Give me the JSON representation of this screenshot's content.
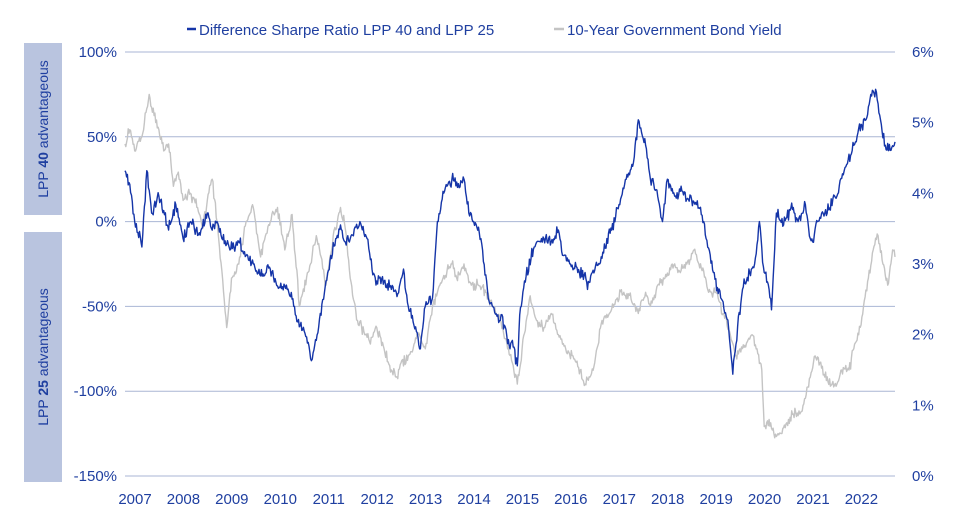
{
  "chart_data": {
    "type": "line",
    "title": "",
    "x_tick_labels": [
      "2007",
      "2008",
      "2009",
      "2010",
      "2011",
      "2012",
      "2013",
      "2014",
      "2015",
      "2016",
      "2017",
      "2018",
      "2019",
      "2020",
      "2021",
      "2022"
    ],
    "y_left": {
      "ylim": [
        -150,
        100
      ],
      "ticks": [
        -150,
        -100,
        -50,
        0,
        50,
        100
      ],
      "tick_labels": [
        "-150%",
        "-100%",
        "-50%",
        "0%",
        "50%",
        "100%"
      ]
    },
    "y_right": {
      "ylim": [
        0,
        6
      ],
      "ticks": [
        0,
        1,
        2,
        3,
        4,
        5,
        6
      ],
      "tick_labels": [
        "0%",
        "1%",
        "2%",
        "3%",
        "4%",
        "5%",
        "6%"
      ]
    },
    "band_labels": {
      "upper": {
        "prefix": "LPP ",
        "bold": "40",
        "suffix": " advantageous"
      },
      "lower": {
        "prefix": "LPP ",
        "bold": "25",
        "suffix": " advantageous"
      }
    },
    "grid": true,
    "legend_position": "top",
    "series": [
      {
        "name": "Difference Sharpe Ratio LPP 40 and LPP 25",
        "axis": "left",
        "color": "#1535a8",
        "points": [
          [
            2007.0,
            30
          ],
          [
            2007.1,
            22
          ],
          [
            2007.2,
            0
          ],
          [
            2007.35,
            -15
          ],
          [
            2007.45,
            30
          ],
          [
            2007.55,
            5
          ],
          [
            2007.7,
            15
          ],
          [
            2007.9,
            -5
          ],
          [
            2008.05,
            10
          ],
          [
            2008.2,
            -10
          ],
          [
            2008.35,
            0
          ],
          [
            2008.55,
            -8
          ],
          [
            2008.7,
            5
          ],
          [
            2008.8,
            -5
          ],
          [
            2008.9,
            0
          ],
          [
            2009.0,
            -10
          ],
          [
            2009.15,
            -15
          ],
          [
            2009.35,
            -12
          ],
          [
            2009.5,
            -20
          ],
          [
            2009.65,
            -25
          ],
          [
            2009.8,
            -32
          ],
          [
            2010.0,
            -28
          ],
          [
            2010.15,
            -38
          ],
          [
            2010.35,
            -40
          ],
          [
            2010.5,
            -50
          ],
          [
            2010.6,
            -62
          ],
          [
            2010.75,
            -68
          ],
          [
            2010.85,
            -82
          ],
          [
            2011.0,
            -62
          ],
          [
            2011.15,
            -35
          ],
          [
            2011.25,
            -20
          ],
          [
            2011.35,
            -10
          ],
          [
            2011.45,
            -2
          ],
          [
            2011.55,
            -12
          ],
          [
            2011.7,
            -8
          ],
          [
            2011.85,
            0
          ],
          [
            2012.0,
            -10
          ],
          [
            2012.1,
            -28
          ],
          [
            2012.2,
            -35
          ],
          [
            2012.35,
            -35
          ],
          [
            2012.5,
            -40
          ],
          [
            2012.65,
            -42
          ],
          [
            2012.75,
            -28
          ],
          [
            2012.85,
            -50
          ],
          [
            2013.0,
            -62
          ],
          [
            2013.1,
            -75
          ],
          [
            2013.2,
            -50
          ],
          [
            2013.35,
            -45
          ],
          [
            2013.45,
            0
          ],
          [
            2013.6,
            18
          ],
          [
            2013.75,
            25
          ],
          [
            2013.9,
            20
          ],
          [
            2014.0,
            25
          ],
          [
            2014.1,
            5
          ],
          [
            2014.2,
            0
          ],
          [
            2014.35,
            -10
          ],
          [
            2014.5,
            -45
          ],
          [
            2014.7,
            -55
          ],
          [
            2014.85,
            -62
          ],
          [
            2014.95,
            -75
          ],
          [
            2015.0,
            -70
          ],
          [
            2015.1,
            -85
          ],
          [
            2015.15,
            -55
          ],
          [
            2015.25,
            -35
          ],
          [
            2015.45,
            -15
          ],
          [
            2015.6,
            -10
          ],
          [
            2015.8,
            -12
          ],
          [
            2015.95,
            -5
          ],
          [
            2016.05,
            -20
          ],
          [
            2016.2,
            -25
          ],
          [
            2016.35,
            -30
          ],
          [
            2016.5,
            -30
          ],
          [
            2016.55,
            -40
          ],
          [
            2016.65,
            -30
          ],
          [
            2016.8,
            -25
          ],
          [
            2016.95,
            -10
          ],
          [
            2017.05,
            -5
          ],
          [
            2017.2,
            10
          ],
          [
            2017.35,
            25
          ],
          [
            2017.5,
            35
          ],
          [
            2017.6,
            60
          ],
          [
            2017.75,
            45
          ],
          [
            2017.85,
            25
          ],
          [
            2018.0,
            15
          ],
          [
            2018.1,
            0
          ],
          [
            2018.2,
            25
          ],
          [
            2018.35,
            15
          ],
          [
            2018.5,
            18
          ],
          [
            2018.65,
            12
          ],
          [
            2018.8,
            10
          ],
          [
            2018.95,
            0
          ],
          [
            2019.0,
            -10
          ],
          [
            2019.15,
            -30
          ],
          [
            2019.3,
            -45
          ],
          [
            2019.45,
            -58
          ],
          [
            2019.55,
            -90
          ],
          [
            2019.65,
            -62
          ],
          [
            2019.75,
            -40
          ],
          [
            2019.9,
            -30
          ],
          [
            2020.0,
            -25
          ],
          [
            2020.1,
            0
          ],
          [
            2020.2,
            -30
          ],
          [
            2020.3,
            -40
          ],
          [
            2020.35,
            -52
          ],
          [
            2020.45,
            5
          ],
          [
            2020.6,
            -2
          ],
          [
            2020.75,
            8
          ],
          [
            2020.9,
            0
          ],
          [
            2021.0,
            5
          ],
          [
            2021.05,
            10
          ],
          [
            2021.15,
            -10
          ],
          [
            2021.2,
            -12
          ],
          [
            2021.3,
            0
          ],
          [
            2021.45,
            5
          ],
          [
            2021.55,
            8
          ],
          [
            2021.7,
            15
          ],
          [
            2021.85,
            30
          ],
          [
            2022.0,
            40
          ],
          [
            2022.15,
            55
          ],
          [
            2022.3,
            60
          ],
          [
            2022.4,
            75
          ],
          [
            2022.5,
            78
          ],
          [
            2022.6,
            60
          ],
          [
            2022.7,
            45
          ],
          [
            2022.8,
            42
          ],
          [
            2022.9,
            47
          ]
        ]
      },
      {
        "name": "10-Year Government Bond Yield",
        "axis": "right",
        "color": "#c4c4c4",
        "points": [
          [
            2007.0,
            4.7
          ],
          [
            2007.1,
            4.9
          ],
          [
            2007.2,
            4.6
          ],
          [
            2007.35,
            4.8
          ],
          [
            2007.5,
            5.4
          ],
          [
            2007.6,
            5.1
          ],
          [
            2007.7,
            4.9
          ],
          [
            2007.8,
            4.6
          ],
          [
            2007.9,
            4.7
          ],
          [
            2008.0,
            4.1
          ],
          [
            2008.1,
            4.3
          ],
          [
            2008.2,
            3.9
          ],
          [
            2008.35,
            4.0
          ],
          [
            2008.5,
            3.8
          ],
          [
            2008.6,
            3.5
          ],
          [
            2008.7,
            3.9
          ],
          [
            2008.8,
            4.2
          ],
          [
            2008.9,
            3.6
          ],
          [
            2009.0,
            2.9
          ],
          [
            2009.1,
            2.1
          ],
          [
            2009.2,
            2.8
          ],
          [
            2009.35,
            3.0
          ],
          [
            2009.5,
            3.6
          ],
          [
            2009.65,
            3.8
          ],
          [
            2009.8,
            3.1
          ],
          [
            2010.0,
            3.6
          ],
          [
            2010.15,
            3.8
          ],
          [
            2010.3,
            3.2
          ],
          [
            2010.45,
            3.7
          ],
          [
            2010.6,
            2.4
          ],
          [
            2010.8,
            2.9
          ],
          [
            2010.95,
            3.4
          ],
          [
            2011.05,
            3.1
          ],
          [
            2011.15,
            2.7
          ],
          [
            2011.3,
            3.4
          ],
          [
            2011.45,
            3.8
          ],
          [
            2011.55,
            3.5
          ],
          [
            2011.65,
            2.8
          ],
          [
            2011.8,
            2.2
          ],
          [
            2011.95,
            2.0
          ],
          [
            2012.05,
            1.9
          ],
          [
            2012.2,
            2.1
          ],
          [
            2012.35,
            1.8
          ],
          [
            2012.5,
            1.5
          ],
          [
            2012.6,
            1.4
          ],
          [
            2012.7,
            1.6
          ],
          [
            2012.85,
            1.7
          ],
          [
            2012.95,
            1.8
          ],
          [
            2013.05,
            2.0
          ],
          [
            2013.2,
            1.8
          ],
          [
            2013.35,
            2.4
          ],
          [
            2013.5,
            2.7
          ],
          [
            2013.65,
            2.9
          ],
          [
            2013.75,
            3.0
          ],
          [
            2013.85,
            2.8
          ],
          [
            2014.0,
            3.0
          ],
          [
            2014.15,
            2.7
          ],
          [
            2014.3,
            2.7
          ],
          [
            2014.45,
            2.6
          ],
          [
            2014.6,
            2.4
          ],
          [
            2014.75,
            2.2
          ],
          [
            2014.9,
            1.8
          ],
          [
            2015.0,
            1.6
          ],
          [
            2015.1,
            1.3
          ],
          [
            2015.2,
            1.8
          ],
          [
            2015.35,
            2.5
          ],
          [
            2015.5,
            2.2
          ],
          [
            2015.65,
            2.1
          ],
          [
            2015.8,
            2.3
          ],
          [
            2015.95,
            2.0
          ],
          [
            2016.1,
            1.8
          ],
          [
            2016.25,
            1.7
          ],
          [
            2016.4,
            1.5
          ],
          [
            2016.5,
            1.3
          ],
          [
            2016.6,
            1.4
          ],
          [
            2016.7,
            1.6
          ],
          [
            2016.85,
            2.2
          ],
          [
            2017.0,
            2.3
          ],
          [
            2017.15,
            2.5
          ],
          [
            2017.3,
            2.6
          ],
          [
            2017.45,
            2.5
          ],
          [
            2017.6,
            2.3
          ],
          [
            2017.75,
            2.6
          ],
          [
            2017.85,
            2.4
          ],
          [
            2018.0,
            2.7
          ],
          [
            2018.15,
            2.8
          ],
          [
            2018.3,
            3.0
          ],
          [
            2018.45,
            2.9
          ],
          [
            2018.6,
            3.0
          ],
          [
            2018.75,
            3.2
          ],
          [
            2018.85,
            3.0
          ],
          [
            2018.95,
            2.9
          ],
          [
            2019.05,
            2.6
          ],
          [
            2019.2,
            2.6
          ],
          [
            2019.35,
            2.3
          ],
          [
            2019.5,
            2.0
          ],
          [
            2019.6,
            1.7
          ],
          [
            2019.7,
            1.8
          ],
          [
            2019.85,
            1.9
          ],
          [
            2019.95,
            2.0
          ],
          [
            2020.05,
            1.8
          ],
          [
            2020.15,
            1.5
          ],
          [
            2020.2,
            0.7
          ],
          [
            2020.3,
            0.8
          ],
          [
            2020.4,
            0.6
          ],
          [
            2020.55,
            0.6
          ],
          [
            2020.7,
            0.8
          ],
          [
            2020.85,
            0.9
          ],
          [
            2020.95,
            0.9
          ],
          [
            2021.05,
            1.1
          ],
          [
            2021.15,
            1.4
          ],
          [
            2021.25,
            1.7
          ],
          [
            2021.35,
            1.6
          ],
          [
            2021.45,
            1.4
          ],
          [
            2021.6,
            1.3
          ],
          [
            2021.7,
            1.3
          ],
          [
            2021.8,
            1.5
          ],
          [
            2021.95,
            1.5
          ],
          [
            2022.05,
            1.8
          ],
          [
            2022.15,
            2.0
          ],
          [
            2022.25,
            2.4
          ],
          [
            2022.35,
            2.8
          ],
          [
            2022.45,
            3.2
          ],
          [
            2022.55,
            3.4
          ],
          [
            2022.65,
            3.0
          ],
          [
            2022.75,
            2.7
          ],
          [
            2022.85,
            3.2
          ],
          [
            2022.9,
            3.1
          ]
        ]
      }
    ]
  }
}
